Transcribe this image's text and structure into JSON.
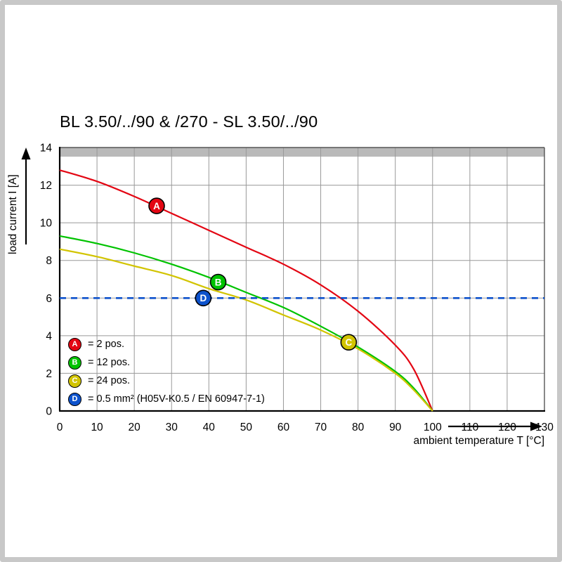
{
  "chart_data": {
    "type": "line",
    "title": "BL 3.50/../90 & /270 - SL 3.50/../90",
    "xlabel": "ambient temperature T [°C]",
    "ylabel": "load current I [A]",
    "xlim": [
      0,
      130
    ],
    "ylim": [
      0,
      14
    ],
    "x_ticks": [
      0,
      10,
      20,
      30,
      40,
      50,
      60,
      70,
      80,
      90,
      100,
      110,
      120,
      130
    ],
    "y_ticks": [
      0,
      2,
      4,
      6,
      8,
      10,
      12,
      14
    ],
    "grid": true,
    "grid_color": "#999999",
    "top_band_color": "#b9b9b9",
    "legend_position": "bottom-left",
    "series": [
      {
        "key": "A",
        "name": "2 pos.",
        "color": "#e30613",
        "style": "solid",
        "marker_at": [
          26,
          10.9
        ],
        "points": [
          [
            0,
            12.8
          ],
          [
            10,
            12.2
          ],
          [
            20,
            11.4
          ],
          [
            30,
            10.5
          ],
          [
            40,
            9.6
          ],
          [
            50,
            8.7
          ],
          [
            60,
            7.8
          ],
          [
            70,
            6.7
          ],
          [
            80,
            5.3
          ],
          [
            90,
            3.5
          ],
          [
            95,
            2.2
          ],
          [
            100,
            0
          ]
        ]
      },
      {
        "key": "B",
        "name": "12 pos.",
        "color": "#00c300",
        "style": "solid",
        "marker_at": [
          42.5,
          6.85
        ],
        "points": [
          [
            0,
            9.3
          ],
          [
            10,
            8.9
          ],
          [
            20,
            8.4
          ],
          [
            30,
            7.8
          ],
          [
            40,
            7.1
          ],
          [
            50,
            6.3
          ],
          [
            60,
            5.5
          ],
          [
            70,
            4.5
          ],
          [
            80,
            3.4
          ],
          [
            90,
            2.1
          ],
          [
            95,
            1.2
          ],
          [
            100,
            0
          ]
        ]
      },
      {
        "key": "C",
        "name": "24 pos.",
        "color": "#d2c400",
        "style": "solid",
        "marker_at": [
          77.5,
          3.65
        ],
        "points": [
          [
            0,
            8.6
          ],
          [
            10,
            8.2
          ],
          [
            20,
            7.7
          ],
          [
            30,
            7.2
          ],
          [
            40,
            6.5
          ],
          [
            50,
            5.9
          ],
          [
            60,
            5.1
          ],
          [
            70,
            4.3
          ],
          [
            80,
            3.3
          ],
          [
            90,
            2.0
          ],
          [
            95,
            1.1
          ],
          [
            100,
            0
          ]
        ]
      },
      {
        "key": "D",
        "name": "0.5 mm² (H05V-K0.5 / EN 60947-7-1)",
        "color": "#0d52cc",
        "style": "dashed",
        "marker_at": [
          38.5,
          6
        ],
        "points": [
          [
            0,
            6
          ],
          [
            130,
            6
          ]
        ]
      }
    ],
    "legend": [
      {
        "key": "A",
        "label": "= 2 pos.",
        "color": "#e30613"
      },
      {
        "key": "B",
        "label": "= 12 pos.",
        "color": "#00c300"
      },
      {
        "key": "C",
        "label": "= 24 pos.",
        "color": "#d2c400"
      },
      {
        "key": "D",
        "label": "= 0.5 mm² (H05V-K0.5 / EN 60947-7-1)",
        "color": "#0d52cc"
      }
    ]
  }
}
